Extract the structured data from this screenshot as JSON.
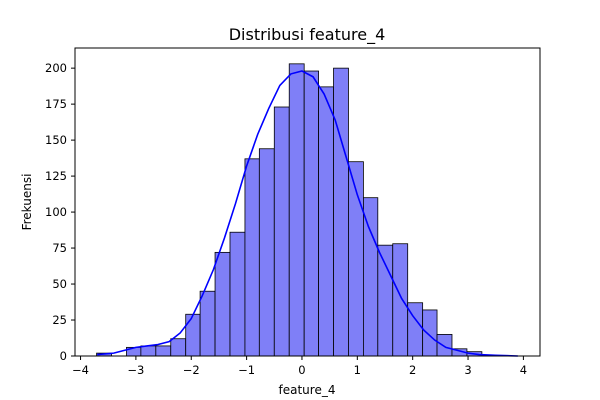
{
  "chart_data": {
    "type": "bar",
    "title": "Distribusi feature_4",
    "xlabel": "feature_4",
    "ylabel": "Frekuensi",
    "xlim": [
      -4.1,
      4.3
    ],
    "ylim": [
      0,
      214
    ],
    "xticks": [
      -4,
      -3,
      -2,
      -1,
      0,
      1,
      2,
      3,
      4
    ],
    "yticks": [
      0,
      25,
      50,
      75,
      100,
      125,
      150,
      175,
      200
    ],
    "grid": false,
    "legend": "none",
    "colors": {
      "bars": "#7f7ff7",
      "kde": "#0000ff"
    },
    "bins": [
      {
        "x0": -3.71,
        "x1": -3.44,
        "count": 2
      },
      {
        "x0": -3.44,
        "x1": -3.17,
        "count": 0
      },
      {
        "x0": -3.17,
        "x1": -2.91,
        "count": 6
      },
      {
        "x0": -2.91,
        "x1": -2.64,
        "count": 7
      },
      {
        "x0": -2.64,
        "x1": -2.37,
        "count": 7
      },
      {
        "x0": -2.37,
        "x1": -2.1,
        "count": 12
      },
      {
        "x0": -2.1,
        "x1": -1.84,
        "count": 29
      },
      {
        "x0": -1.84,
        "x1": -1.57,
        "count": 45
      },
      {
        "x0": -1.57,
        "x1": -1.3,
        "count": 72
      },
      {
        "x0": -1.3,
        "x1": -1.03,
        "count": 86
      },
      {
        "x0": -1.03,
        "x1": -0.77,
        "count": 137
      },
      {
        "x0": -0.77,
        "x1": -0.5,
        "count": 144
      },
      {
        "x0": -0.5,
        "x1": -0.23,
        "count": 173
      },
      {
        "x0": -0.23,
        "x1": 0.04,
        "count": 203
      },
      {
        "x0": 0.04,
        "x1": 0.3,
        "count": 198
      },
      {
        "x0": 0.3,
        "x1": 0.57,
        "count": 187
      },
      {
        "x0": 0.57,
        "x1": 0.84,
        "count": 200
      },
      {
        "x0": 0.84,
        "x1": 1.11,
        "count": 135
      },
      {
        "x0": 1.11,
        "x1": 1.37,
        "count": 110
      },
      {
        "x0": 1.37,
        "x1": 1.64,
        "count": 77
      },
      {
        "x0": 1.64,
        "x1": 1.91,
        "count": 78
      },
      {
        "x0": 1.91,
        "x1": 2.18,
        "count": 37
      },
      {
        "x0": 2.18,
        "x1": 2.44,
        "count": 32
      },
      {
        "x0": 2.44,
        "x1": 2.71,
        "count": 15
      },
      {
        "x0": 2.71,
        "x1": 2.98,
        "count": 5
      },
      {
        "x0": 2.98,
        "x1": 3.25,
        "count": 3
      },
      {
        "x0": 3.25,
        "x1": 3.51,
        "count": 0
      },
      {
        "x0": 3.51,
        "x1": 3.78,
        "count": 0
      }
    ],
    "kde": {
      "x": [
        -3.7,
        -3.4,
        -3.2,
        -3.0,
        -2.8,
        -2.6,
        -2.4,
        -2.2,
        -2.0,
        -1.8,
        -1.6,
        -1.4,
        -1.2,
        -1.0,
        -0.8,
        -0.6,
        -0.4,
        -0.2,
        0.0,
        0.2,
        0.4,
        0.6,
        0.8,
        1.0,
        1.2,
        1.4,
        1.6,
        1.8,
        2.0,
        2.2,
        2.4,
        2.6,
        2.8,
        3.0,
        3.2,
        3.5,
        3.9
      ],
      "y": [
        1,
        2,
        4,
        6,
        7,
        8,
        10,
        16,
        26,
        42,
        60,
        82,
        106,
        132,
        154,
        172,
        188,
        196,
        198,
        194,
        182,
        164,
        138,
        112,
        90,
        72,
        56,
        40,
        28,
        18,
        11,
        6,
        4,
        2,
        1,
        0.5,
        0
      ]
    }
  }
}
